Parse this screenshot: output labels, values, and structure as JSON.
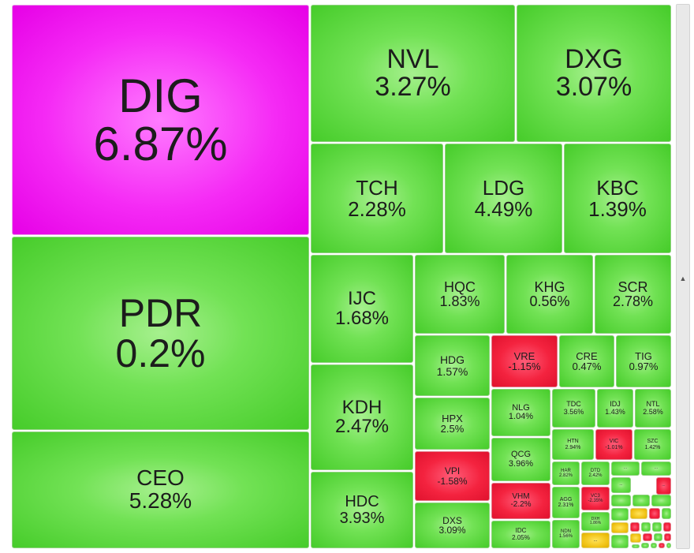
{
  "chart_data": {
    "type": "treemap",
    "unit": "%",
    "colors": {
      "up": "#5fd83f",
      "down": "#f2203f",
      "ceiling": "#f01cf0",
      "reference": "#f0c419"
    },
    "items": [
      {
        "ticker": "DIG",
        "change": "6.87%",
        "status": "ceiling"
      },
      {
        "ticker": "NVL",
        "change": "3.27%",
        "status": "up"
      },
      {
        "ticker": "DXG",
        "change": "3.07%",
        "status": "up"
      },
      {
        "ticker": "TCH",
        "change": "2.28%",
        "status": "up"
      },
      {
        "ticker": "LDG",
        "change": "4.49%",
        "status": "up"
      },
      {
        "ticker": "KBC",
        "change": "1.39%",
        "status": "up"
      },
      {
        "ticker": "PDR",
        "change": "0.2%",
        "status": "up"
      },
      {
        "ticker": "IJC",
        "change": "1.68%",
        "status": "up"
      },
      {
        "ticker": "HQC",
        "change": "1.83%",
        "status": "up"
      },
      {
        "ticker": "KHG",
        "change": "0.56%",
        "status": "up"
      },
      {
        "ticker": "SCR",
        "change": "2.78%",
        "status": "up"
      },
      {
        "ticker": "HDG",
        "change": "1.57%",
        "status": "up"
      },
      {
        "ticker": "VRE",
        "change": "-1.15%",
        "status": "down"
      },
      {
        "ticker": "CRE",
        "change": "0.47%",
        "status": "up"
      },
      {
        "ticker": "TIG",
        "change": "0.97%",
        "status": "up"
      },
      {
        "ticker": "KDH",
        "change": "2.47%",
        "status": "up"
      },
      {
        "ticker": "HPX",
        "change": "2.5%",
        "status": "up"
      },
      {
        "ticker": "NLG",
        "change": "1.04%",
        "status": "up"
      },
      {
        "ticker": "TDC",
        "change": "3.56%",
        "status": "up"
      },
      {
        "ticker": "IDJ",
        "change": "1.43%",
        "status": "up"
      },
      {
        "ticker": "NTL",
        "change": "2.58%",
        "status": "up"
      },
      {
        "ticker": "HTN",
        "change": "2.94%",
        "status": "up"
      },
      {
        "ticker": "VIC",
        "change": "-1.01%",
        "status": "down"
      },
      {
        "ticker": "SZC",
        "change": "1.42%",
        "status": "up"
      },
      {
        "ticker": "CEO",
        "change": "5.28%",
        "status": "up"
      },
      {
        "ticker": "VPI",
        "change": "-1.58%",
        "status": "down"
      },
      {
        "ticker": "QCG",
        "change": "3.96%",
        "status": "up"
      },
      {
        "ticker": "HAR",
        "change": "2.82%",
        "status": "up"
      },
      {
        "ticker": "DTD",
        "change": "2.42%",
        "status": "up"
      },
      {
        "ticker": "VHM",
        "change": "-2.2%",
        "status": "down"
      },
      {
        "ticker": "AGG",
        "change": "2.31%",
        "status": "up"
      },
      {
        "ticker": "VC3",
        "change": "-2.35%",
        "status": "down"
      },
      {
        "ticker": "HDC",
        "change": "3.93%",
        "status": "up"
      },
      {
        "ticker": "DXS",
        "change": "3.09%",
        "status": "up"
      },
      {
        "ticker": "IDC",
        "change": "2.05%",
        "status": "up"
      },
      {
        "ticker": "NDN",
        "change": "1.56%",
        "status": "up"
      },
      {
        "ticker": "DXH",
        "change": "1.86%",
        "status": "up"
      },
      {
        "ticker": "...",
        "change": "",
        "status": "up"
      },
      {
        "ticker": "...",
        "change": "",
        "status": "up"
      },
      {
        "ticker": "...",
        "change": "",
        "status": "up"
      },
      {
        "ticker": "...",
        "change": "",
        "status": "down"
      },
      {
        "ticker": "...",
        "change": "",
        "status": "reference"
      },
      {
        "ticker": "",
        "change": "",
        "status": "up"
      },
      {
        "ticker": "",
        "change": "",
        "status": "up"
      },
      {
        "ticker": "",
        "change": "",
        "status": "up"
      },
      {
        "ticker": "",
        "change": "",
        "status": "up"
      },
      {
        "ticker": "",
        "change": "",
        "status": "reference"
      },
      {
        "ticker": "",
        "change": "",
        "status": "down"
      },
      {
        "ticker": "",
        "change": "",
        "status": "up"
      },
      {
        "ticker": "",
        "change": "",
        "status": "reference"
      },
      {
        "ticker": "",
        "change": "",
        "status": "down"
      },
      {
        "ticker": "",
        "change": "",
        "status": "up"
      },
      {
        "ticker": "",
        "change": "",
        "status": "up"
      },
      {
        "ticker": "",
        "change": "",
        "status": "down"
      },
      {
        "ticker": "",
        "change": "",
        "status": "up"
      },
      {
        "ticker": "",
        "change": "",
        "status": "reference"
      },
      {
        "ticker": "",
        "change": "",
        "status": "down"
      },
      {
        "ticker": "",
        "change": "",
        "status": "up"
      },
      {
        "ticker": "",
        "change": "",
        "status": "down"
      },
      {
        "ticker": "",
        "change": "",
        "status": "up"
      },
      {
        "ticker": "",
        "change": "",
        "status": "up"
      },
      {
        "ticker": "",
        "change": "",
        "status": "up"
      },
      {
        "ticker": "",
        "change": "",
        "status": "down"
      },
      {
        "ticker": "",
        "change": "",
        "status": "up"
      }
    ]
  },
  "scrollbar": {
    "icon": "scroll-indicator-icon"
  }
}
